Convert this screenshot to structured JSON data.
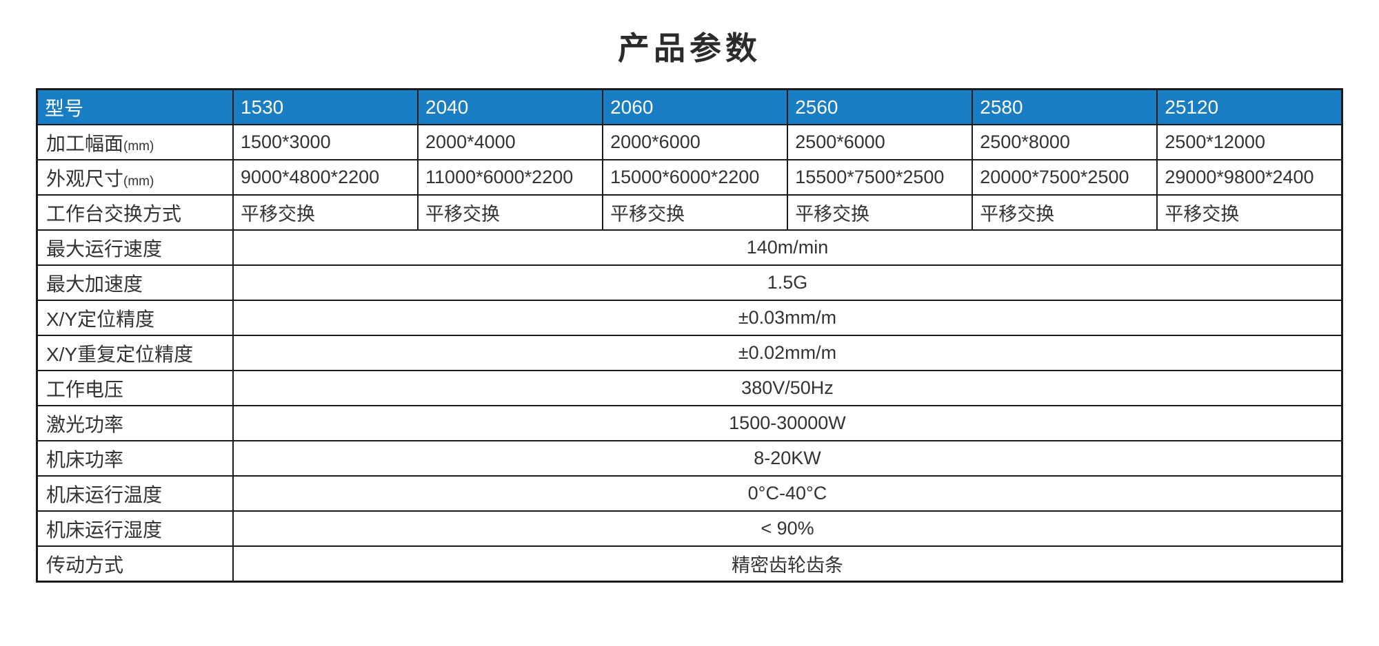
{
  "page": {
    "title": "产品参数"
  },
  "colors": {
    "header_bg": "#187dc3",
    "header_text": "#ffffff",
    "body_text": "#333333",
    "border": "#1a1a1a"
  },
  "table": {
    "header": {
      "label": "型号",
      "models": [
        "1530",
        "2040",
        "2060",
        "2560",
        "2580",
        "25120"
      ]
    },
    "per_model_rows": [
      {
        "label": "加工幅面",
        "label_suffix": "(mm)",
        "values": [
          "1500*3000",
          "2000*4000",
          "2000*6000",
          "2500*6000",
          "2500*8000",
          "2500*12000"
        ]
      },
      {
        "label": "外观尺寸",
        "label_suffix": "(mm)",
        "values": [
          "9000*4800*2200",
          "11000*6000*2200",
          "15000*6000*2200",
          "15500*7500*2500",
          "20000*7500*2500",
          "29000*9800*2400"
        ]
      },
      {
        "label": "工作台交换方式",
        "label_suffix": "",
        "values": [
          "平移交换",
          "平移交换",
          "平移交换",
          "平移交换",
          "平移交换",
          "平移交换"
        ]
      }
    ],
    "shared_rows": [
      {
        "label": "最大运行速度",
        "value": "140m/min"
      },
      {
        "label": "最大加速度",
        "value": "1.5G"
      },
      {
        "label": "X/Y定位精度",
        "value": "±0.03mm/m"
      },
      {
        "label": "X/Y重复定位精度",
        "value": "±0.02mm/m"
      },
      {
        "label": "工作电压",
        "value": "380V/50Hz"
      },
      {
        "label": "激光功率",
        "value": "1500-30000W"
      },
      {
        "label": "机床功率",
        "value": "8-20KW"
      },
      {
        "label": "机床运行温度",
        "value": "0°C-40°C"
      },
      {
        "label": "机床运行湿度",
        "value": "< 90%"
      },
      {
        "label": "传动方式",
        "value": "精密齿轮齿条"
      }
    ]
  }
}
